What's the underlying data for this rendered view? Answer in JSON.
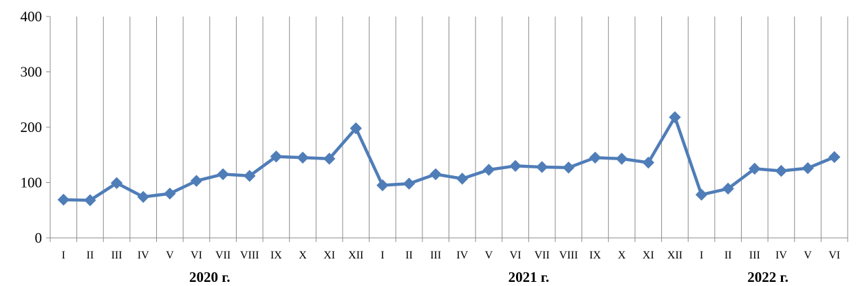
{
  "chart_data": {
    "type": "line",
    "title": "",
    "xlabel": "",
    "ylabel": "",
    "ylim": [
      0,
      400
    ],
    "yticks": [
      "0",
      "100",
      "200",
      "300",
      "400"
    ],
    "grid": {
      "vertical": true,
      "horizontal": false
    },
    "categories": [
      "I",
      "II",
      "III",
      "IV",
      "V",
      "VI",
      "VII",
      "VIII",
      "IX",
      "X",
      "XI",
      "XII",
      "I",
      "II",
      "III",
      "IV",
      "V",
      "VI",
      "VII",
      "VIII",
      "IX",
      "X",
      "XI",
      "XII",
      "I",
      "II",
      "III",
      "IV",
      "V",
      "VI"
    ],
    "year_groups": [
      {
        "label": "2020 г.",
        "start": 0,
        "count": 12
      },
      {
        "label": "2021 г.",
        "start": 12,
        "count": 12
      },
      {
        "label": "2022 г.",
        "start": 24,
        "count": 6
      }
    ],
    "series": [
      {
        "values": [
          69,
          68,
          99,
          74,
          80,
          103,
          115,
          112,
          147,
          145,
          143,
          198,
          95,
          98,
          115,
          107,
          123,
          130,
          128,
          127,
          145,
          143,
          136,
          218,
          78,
          89,
          125,
          121,
          126,
          146
        ],
        "color": "#4F7DB8",
        "marker": "diamond"
      }
    ]
  }
}
